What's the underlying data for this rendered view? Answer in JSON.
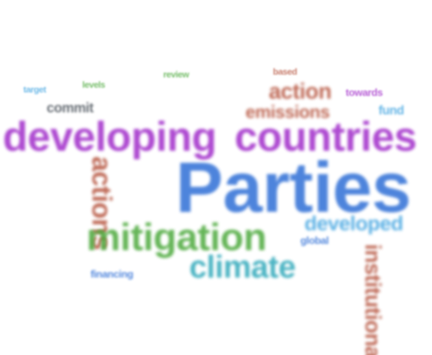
{
  "colors": {
    "purple": "#a02bc9",
    "blue": "#2f6fd6",
    "green": "#4aa83a",
    "brown": "#b4503a",
    "teal": "#2aa6b8",
    "lightblue": "#3fa3e0"
  },
  "words": {
    "developing": "developing",
    "countries": "countries",
    "parties": "Parties",
    "mitigation": "mitigation",
    "climate": "climate",
    "action": "action",
    "emissions": "emissions",
    "developed": "developed",
    "actions": "actions",
    "institutional": "institutional",
    "financing": "financing",
    "commit": "commit",
    "fund": "fund",
    "towards": "towards",
    "global": "global",
    "target": "target",
    "based": "based",
    "review": "review",
    "levels": "levels"
  }
}
